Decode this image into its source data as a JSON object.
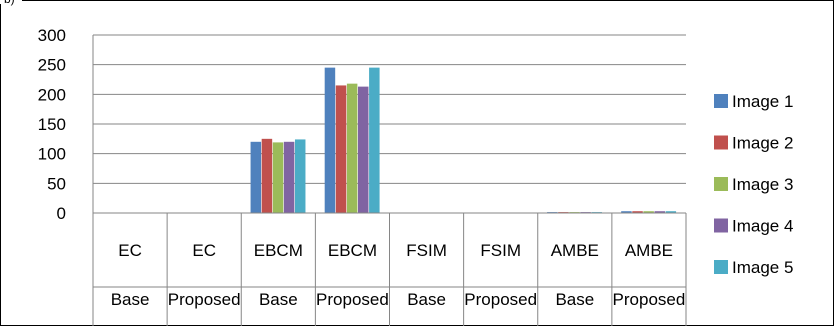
{
  "chart_data": {
    "type": "bar",
    "title": "",
    "corner_text": "b)",
    "xlabel": "",
    "ylabel": "",
    "ylim": [
      0,
      300
    ],
    "yticks": [
      0,
      50,
      100,
      150,
      200,
      250,
      300
    ],
    "grid": true,
    "legend_position": "right",
    "categories": [
      {
        "metric": "EC",
        "method": "Base"
      },
      {
        "metric": "EC",
        "method": "Proposed"
      },
      {
        "metric": "EBCM",
        "method": "Base"
      },
      {
        "metric": "EBCM",
        "method": "Proposed"
      },
      {
        "metric": "FSIM",
        "method": "Base"
      },
      {
        "metric": "FSIM",
        "method": "Proposed"
      },
      {
        "metric": "AMBE",
        "method": "Base"
      },
      {
        "metric": "AMBE",
        "method": "Proposed"
      }
    ],
    "series": [
      {
        "name": "Image 1",
        "color": "#4f81bd",
        "values": [
          0.5,
          0.7,
          120,
          245,
          0.5,
          0.5,
          1.5,
          3
        ]
      },
      {
        "name": "Image 2",
        "color": "#c0504d",
        "values": [
          0.5,
          0.7,
          125,
          215,
          0.5,
          0.5,
          1.5,
          3
        ]
      },
      {
        "name": "Image 3",
        "color": "#9bbb59",
        "values": [
          0.5,
          0.7,
          119,
          218,
          0.5,
          0.5,
          1.5,
          3
        ]
      },
      {
        "name": "Image 4",
        "color": "#8064a2",
        "values": [
          0.5,
          0.7,
          120,
          213,
          0.5,
          0.5,
          1.5,
          3
        ]
      },
      {
        "name": "Image 5",
        "color": "#4bacc6",
        "values": [
          0.5,
          0.7,
          124,
          245,
          0.5,
          0.5,
          1.5,
          3
        ]
      }
    ]
  }
}
